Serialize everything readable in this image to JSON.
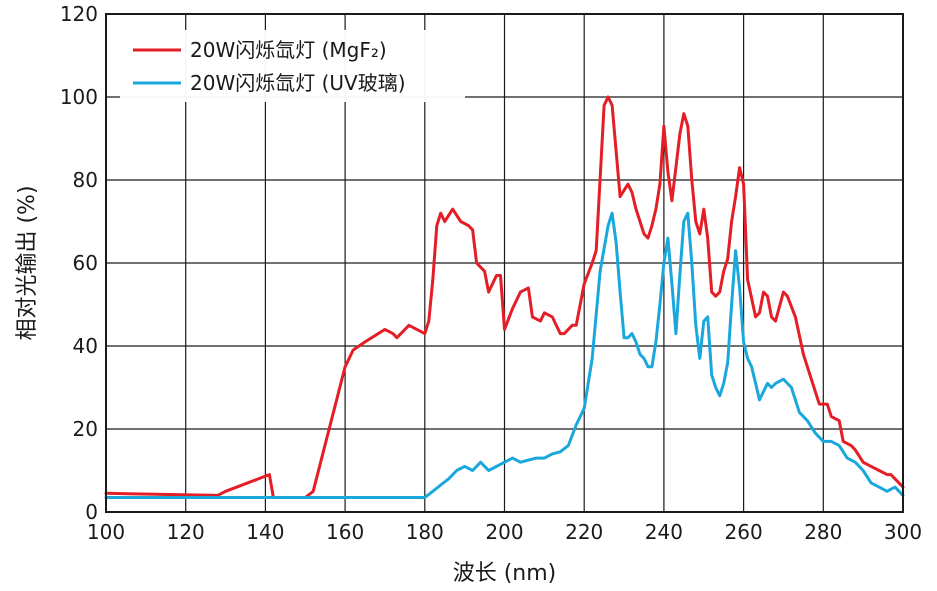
{
  "chart_data": {
    "type": "line",
    "xlabel": "波长 (nm)",
    "ylabel": "相对光输出 (%)",
    "xlim": [
      100,
      300
    ],
    "ylim": [
      0,
      120
    ],
    "x_ticks": [
      100,
      120,
      140,
      160,
      180,
      200,
      220,
      240,
      260,
      280,
      300
    ],
    "y_ticks": [
      0,
      20,
      40,
      60,
      80,
      100,
      120
    ],
    "grid": true,
    "legend_position": "top-left",
    "series": [
      {
        "name": "20W闪烁氙灯 (MgF₂)",
        "color": "#e41e26",
        "x": [
          100,
          128,
          130,
          141,
          142,
          150,
          152,
          160,
          162,
          165,
          170,
          172,
          173,
          176,
          178,
          180,
          181,
          182,
          183,
          184,
          185,
          187,
          189,
          191,
          192,
          193,
          195,
          196,
          198,
          199,
          200,
          202,
          204,
          206,
          207,
          209,
          210,
          212,
          214,
          215,
          217,
          218,
          220,
          222,
          223,
          225,
          226,
          227,
          228,
          229,
          231,
          232,
          233,
          234,
          235,
          236,
          237,
          238,
          239,
          240,
          241,
          242,
          243,
          244,
          245,
          246,
          247,
          248,
          249,
          250,
          251,
          252,
          253,
          254,
          255,
          256,
          257,
          258,
          259,
          260,
          261,
          263,
          264,
          265,
          266,
          267,
          268,
          270,
          271,
          273,
          275,
          276,
          278,
          279,
          281,
          282,
          284,
          285,
          287,
          288,
          290,
          292,
          294,
          296,
          297,
          298,
          299,
          300
        ],
        "y": [
          4.5,
          4,
          5,
          9,
          3.5,
          3.5,
          5,
          35,
          39,
          41,
          44,
          43,
          42,
          45,
          44,
          43,
          46,
          56,
          69,
          72,
          70,
          73,
          70,
          69,
          68,
          60,
          58,
          53,
          57,
          57,
          44,
          49,
          53,
          54,
          47,
          46,
          48,
          47,
          43,
          43,
          45,
          45,
          55,
          60,
          63,
          98,
          100,
          98,
          87,
          76,
          79,
          77,
          73,
          70,
          67,
          66,
          69,
          73,
          79,
          93,
          82,
          75,
          83,
          91,
          96,
          93,
          80,
          70,
          67,
          73,
          66,
          53,
          52,
          53,
          58,
          61,
          70,
          76,
          83,
          79,
          56,
          47,
          48,
          53,
          52,
          47,
          46,
          53,
          52,
          47,
          38,
          35,
          29,
          26,
          26,
          23,
          22,
          17,
          16,
          15,
          12,
          11,
          10,
          9,
          9,
          8,
          7,
          6
        ]
      },
      {
        "name": "20W闪烁氙灯 (UV玻璃)",
        "color": "#1aa7dc",
        "x": [
          100,
          180,
          182,
          184,
          186,
          188,
          190,
          192,
          194,
          196,
          198,
          200,
          202,
          204,
          206,
          208,
          210,
          212,
          214,
          216,
          218,
          220,
          222,
          224,
          226,
          227,
          228,
          229,
          230,
          231,
          232,
          233,
          234,
          235,
          236,
          237,
          238,
          239,
          240,
          241,
          242,
          243,
          244,
          245,
          246,
          247,
          248,
          249,
          250,
          251,
          252,
          253,
          254,
          255,
          256,
          257,
          258,
          259,
          260,
          261,
          262,
          263,
          264,
          266,
          267,
          268,
          270,
          271,
          272,
          274,
          276,
          278,
          280,
          282,
          284,
          286,
          288,
          290,
          292,
          294,
          296,
          298,
          300
        ],
        "y": [
          3.5,
          3.5,
          5,
          6.5,
          8,
          10,
          11,
          10,
          12,
          10,
          11,
          12,
          13,
          12,
          12.5,
          13,
          13,
          14,
          14.5,
          16,
          21,
          25,
          37,
          58,
          69,
          72,
          65,
          53,
          42,
          42,
          43,
          41,
          38,
          37,
          35,
          35,
          41,
          50,
          60,
          66,
          55,
          43,
          57,
          70,
          72,
          60,
          45,
          37,
          46,
          47,
          33,
          30,
          28,
          31,
          36,
          50,
          63,
          54,
          41,
          37,
          35,
          31,
          27,
          31,
          30,
          31,
          32,
          31,
          30,
          24,
          22,
          19,
          17,
          17,
          16,
          13,
          12,
          10,
          7,
          6,
          5,
          6,
          4
        ]
      }
    ]
  }
}
